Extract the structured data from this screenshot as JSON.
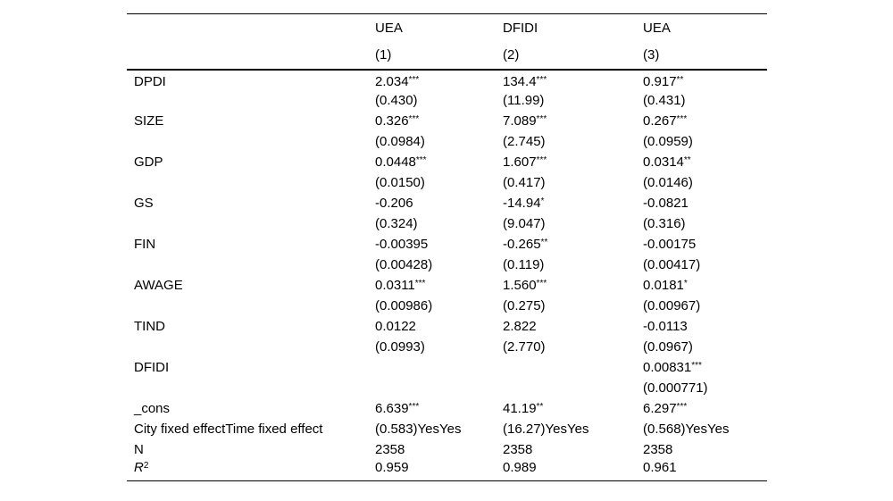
{
  "page": {
    "background": "#ffffff",
    "text_color": "#000000",
    "rule_color": "#000000"
  },
  "table": {
    "columns": {
      "model_names": [
        "UEA",
        "DFIDI",
        "UEA"
      ],
      "model_numbers": [
        "(1)",
        "(2)",
        "(3)"
      ]
    },
    "rows": [
      {
        "label": "DPDI",
        "cells": [
          [
            "2.034",
            "***"
          ],
          [
            "134.4",
            "***"
          ],
          [
            "0.917",
            "**"
          ]
        ]
      },
      {
        "label": "",
        "cells": [
          [
            "(0.430)",
            ""
          ],
          [
            "(11.99)",
            ""
          ],
          [
            "(0.431)",
            ""
          ]
        ]
      },
      {
        "label": "SIZE",
        "cells": [
          [
            "0.326",
            "***"
          ],
          [
            "7.089",
            "***"
          ],
          [
            "0.267",
            "***"
          ]
        ]
      },
      {
        "label": "",
        "cells": [
          [
            "(0.0984)",
            ""
          ],
          [
            "(2.745)",
            ""
          ],
          [
            "(0.0959)",
            ""
          ]
        ]
      },
      {
        "label": "GDP",
        "cells": [
          [
            "0.0448",
            "***"
          ],
          [
            "1.607",
            "***"
          ],
          [
            "0.0314",
            "**"
          ]
        ]
      },
      {
        "label": "",
        "cells": [
          [
            "(0.0150)",
            ""
          ],
          [
            "(0.417)",
            ""
          ],
          [
            "(0.0146)",
            ""
          ]
        ]
      },
      {
        "label": "GS",
        "cells": [
          [
            "-0.206",
            ""
          ],
          [
            "-14.94",
            "*"
          ],
          [
            "-0.0821",
            ""
          ]
        ]
      },
      {
        "label": "",
        "cells": [
          [
            "(0.324)",
            ""
          ],
          [
            "(9.047)",
            ""
          ],
          [
            "(0.316)",
            ""
          ]
        ]
      },
      {
        "label": "FIN",
        "cells": [
          [
            "-0.00395",
            ""
          ],
          [
            "-0.265",
            "**"
          ],
          [
            "-0.00175",
            ""
          ]
        ]
      },
      {
        "label": "",
        "cells": [
          [
            "(0.00428)",
            ""
          ],
          [
            "(0.119)",
            ""
          ],
          [
            "(0.00417)",
            ""
          ]
        ]
      },
      {
        "label": "AWAGE",
        "cells": [
          [
            "0.0311",
            "***"
          ],
          [
            "1.560",
            "***"
          ],
          [
            "0.0181",
            "*"
          ]
        ]
      },
      {
        "label": "",
        "cells": [
          [
            "(0.00986)",
            ""
          ],
          [
            "(0.275)",
            ""
          ],
          [
            "(0.00967)",
            ""
          ]
        ]
      },
      {
        "label": "TIND",
        "cells": [
          [
            "0.0122",
            ""
          ],
          [
            "2.822",
            ""
          ],
          [
            "-0.0113",
            ""
          ]
        ]
      },
      {
        "label": "",
        "cells": [
          [
            "(0.0993)",
            ""
          ],
          [
            "(2.770)",
            ""
          ],
          [
            "(0.0967)",
            ""
          ]
        ]
      },
      {
        "label": "DFIDI",
        "cells": [
          [
            "",
            ""
          ],
          [
            "",
            ""
          ],
          [
            "0.00831",
            "***"
          ]
        ]
      },
      {
        "label": "",
        "cells": [
          [
            "",
            ""
          ],
          [
            "",
            ""
          ],
          [
            "(0.000771)",
            ""
          ]
        ]
      },
      {
        "label": "_cons",
        "cells": [
          [
            "6.639",
            "***"
          ],
          [
            "41.19",
            "**"
          ],
          [
            "6.297",
            "***"
          ]
        ]
      },
      {
        "label": "City fixed effectTime fixed effect",
        "cells": [
          [
            "(0.583)YesYes",
            ""
          ],
          [
            "(16.27)YesYes",
            ""
          ],
          [
            "(0.568)YesYes",
            ""
          ]
        ]
      },
      {
        "label": "N",
        "cells": [
          [
            "2358",
            ""
          ],
          [
            "2358",
            ""
          ],
          [
            "2358",
            ""
          ]
        ]
      },
      {
        "label": "R",
        "label_sup": "2",
        "label_italic": true,
        "cells": [
          [
            "0.959",
            ""
          ],
          [
            "0.989",
            ""
          ],
          [
            "0.961",
            ""
          ]
        ]
      }
    ]
  }
}
